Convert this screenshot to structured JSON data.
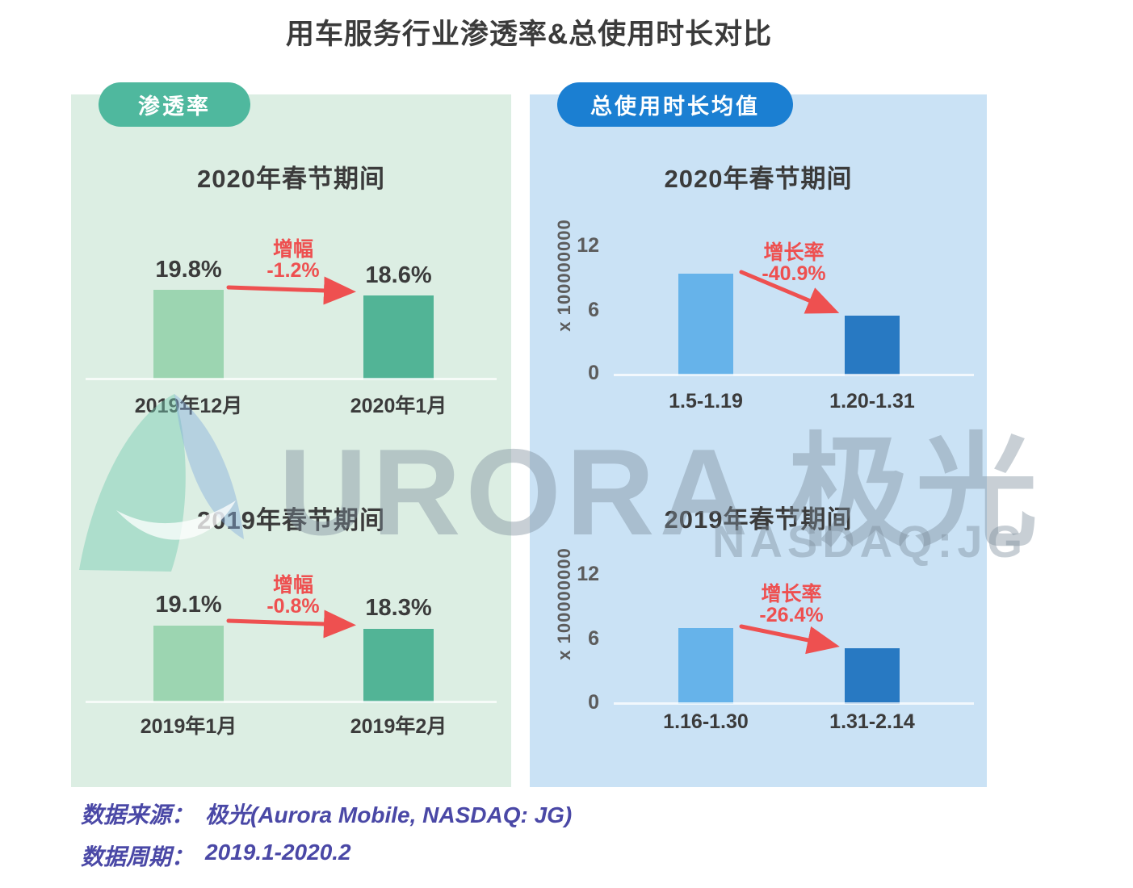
{
  "title": "用车服务行业渗透率&总使用时长对比",
  "colors": {
    "panel_green": "#DCEEE3",
    "panel_blue": "#CAE2F5",
    "badge_green": "#4FB89E",
    "badge_blue": "#1B7FD2",
    "bar_green_light": "#9CD5B1",
    "bar_green_dark": "#52B496",
    "bar_blue_light": "#66B3EA",
    "bar_blue_dark": "#2879C2",
    "red": "#EE5050",
    "footer_purple": "#4A48A6",
    "text_dark": "#3B3B3B",
    "axis_gray": "#5C5C5C"
  },
  "panels": [
    {
      "badge": "渗透率"
    },
    {
      "badge": "总使用时长均值"
    }
  ],
  "watermark": {
    "brand": "URORA",
    "brand_cn": "极光",
    "ticker": "NASDAQ:JG"
  },
  "footer": {
    "source_label": "数据来源：",
    "source_value": "极光(Aurora Mobile, NASDAQ: JG)",
    "period_label": "数据周期：",
    "period_value": "2019.1-2020.2"
  },
  "chart_data": [
    {
      "type": "bar",
      "panel": "渗透率",
      "title": "2020年春节期间",
      "categories": [
        "2019年12月",
        "2020年1月"
      ],
      "values": [
        19.8,
        18.6
      ],
      "value_labels": [
        "19.8%",
        "18.6%"
      ],
      "unit": "%",
      "change_label": "增幅",
      "change_value": "-1.2%",
      "legend_position": "none",
      "grid": false
    },
    {
      "type": "bar",
      "panel": "渗透率",
      "title": "2019年春节期间",
      "categories": [
        "2019年1月",
        "2019年2月"
      ],
      "values": [
        19.1,
        18.3
      ],
      "value_labels": [
        "19.1%",
        "18.3%"
      ],
      "unit": "%",
      "change_label": "增幅",
      "change_value": "-0.8%",
      "legend_position": "none",
      "grid": false
    },
    {
      "type": "bar",
      "panel": "总使用时长均值",
      "title": "2020年春节期间",
      "categories": [
        "1.5-1.19",
        "1.20-1.31"
      ],
      "values": [
        9.5,
        5.6
      ],
      "ylabel": "x 100000000",
      "yticks": [
        "12",
        "6",
        "0"
      ],
      "ylim": [
        0,
        12
      ],
      "change_label": "增长率",
      "change_value": "-40.9%",
      "legend_position": "none",
      "grid": false
    },
    {
      "type": "bar",
      "panel": "总使用时长均值",
      "title": "2019年春节期间",
      "categories": [
        "1.16-1.30",
        "1.31-2.14"
      ],
      "values": [
        7.1,
        5.2
      ],
      "ylabel": "x 100000000",
      "yticks": [
        "12",
        "6",
        "0"
      ],
      "ylim": [
        0,
        12
      ],
      "change_label": "增长率",
      "change_value": "-26.4%",
      "legend_position": "none",
      "grid": false
    }
  ]
}
